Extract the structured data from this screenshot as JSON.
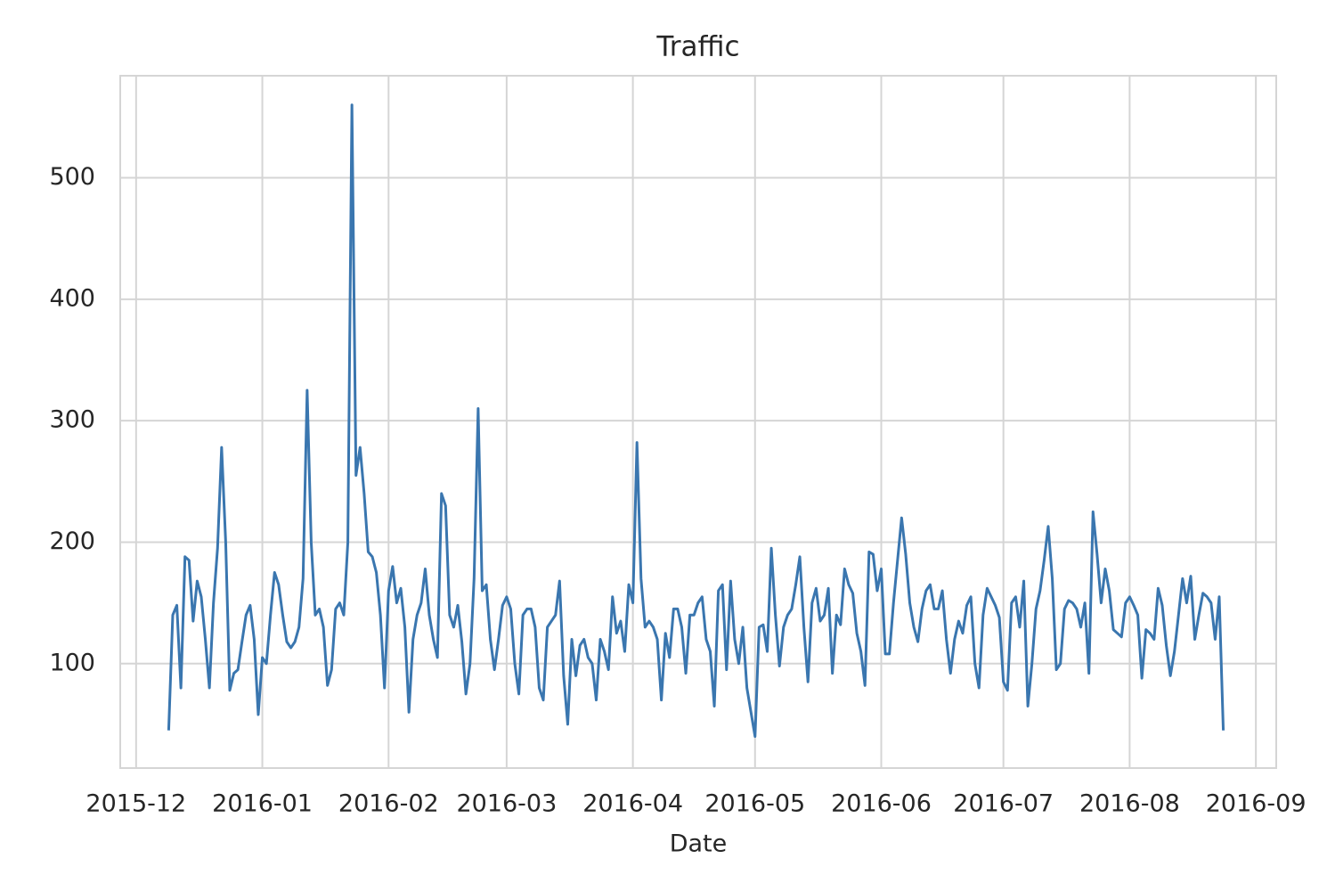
{
  "chart_data": {
    "type": "line",
    "title": "Traffic",
    "x_label": "Date",
    "x": [
      8,
      9,
      10,
      11,
      12,
      13,
      14,
      15,
      16,
      17,
      18,
      19,
      20,
      21,
      22,
      23,
      24,
      25,
      26,
      27,
      28,
      29,
      30,
      31,
      32,
      33,
      34,
      35,
      36,
      37,
      38,
      39,
      40,
      41,
      42,
      43,
      44,
      45,
      46,
      47,
      48,
      49,
      50,
      51,
      52,
      53,
      54,
      55,
      56,
      57,
      58,
      59,
      60,
      61,
      62,
      63,
      64,
      65,
      66,
      67,
      68,
      69,
      70,
      71,
      72,
      73,
      74,
      75,
      76,
      77,
      78,
      79,
      80,
      81,
      82,
      83,
      84,
      85,
      86,
      87,
      88,
      89,
      90,
      91,
      92,
      93,
      94,
      95,
      96,
      97,
      98,
      99,
      100,
      101,
      102,
      103,
      104,
      105,
      106,
      107,
      108,
      109,
      110,
      111,
      112,
      113,
      114,
      115,
      116,
      117,
      118,
      119,
      120,
      121,
      122,
      123,
      124,
      125,
      126,
      127,
      128,
      129,
      130,
      131,
      132,
      133,
      134,
      135,
      136,
      137,
      138,
      139,
      140,
      141,
      142,
      143,
      144,
      145,
      146,
      147,
      148,
      149,
      150,
      151,
      152,
      153,
      154,
      155,
      156,
      157,
      158,
      159,
      160,
      161,
      162,
      163,
      164,
      165,
      166,
      167,
      168,
      169,
      170,
      171,
      172,
      173,
      174,
      175,
      176,
      177,
      178,
      179,
      180,
      181,
      182,
      183,
      184,
      185,
      186,
      187,
      188,
      189,
      190,
      191,
      192,
      193,
      194,
      195,
      196,
      197,
      198,
      199,
      200,
      201,
      202,
      203,
      204,
      205,
      206,
      207,
      208,
      209,
      210,
      211,
      212,
      213,
      214,
      215,
      216,
      217,
      218,
      219,
      220,
      221,
      222,
      223,
      224,
      225,
      226,
      227,
      228,
      229,
      230,
      231,
      232,
      233,
      234,
      235,
      236,
      237,
      238,
      239,
      240,
      241,
      242,
      243,
      244,
      245,
      246,
      247,
      248,
      249,
      250,
      251,
      252,
      253,
      254,
      255,
      256,
      257,
      258,
      259,
      260,
      261,
      262,
      263,
      264,
      265,
      266,
      267
    ],
    "values": [
      45,
      140,
      148,
      80,
      188,
      185,
      135,
      168,
      155,
      120,
      80,
      150,
      195,
      278,
      200,
      78,
      92,
      95,
      118,
      140,
      148,
      120,
      58,
      105,
      100,
      140,
      175,
      165,
      140,
      118,
      113,
      118,
      130,
      170,
      325,
      200,
      140,
      145,
      130,
      82,
      95,
      145,
      150,
      140,
      200,
      560,
      255,
      278,
      240,
      192,
      188,
      175,
      140,
      80,
      160,
      180,
      150,
      162,
      130,
      60,
      120,
      140,
      150,
      178,
      140,
      120,
      105,
      240,
      230,
      140,
      130,
      148,
      118,
      75,
      100,
      170,
      310,
      160,
      165,
      120,
      95,
      120,
      148,
      155,
      145,
      100,
      75,
      140,
      145,
      145,
      130,
      80,
      70,
      130,
      135,
      140,
      168,
      90,
      50,
      120,
      90,
      115,
      120,
      105,
      100,
      70,
      120,
      110,
      95,
      155,
      125,
      135,
      110,
      165,
      150,
      282,
      170,
      130,
      135,
      130,
      120,
      70,
      125,
      105,
      145,
      145,
      130,
      92,
      140,
      140,
      150,
      155,
      120,
      110,
      65,
      160,
      165,
      95,
      168,
      120,
      100,
      130,
      80,
      60,
      40,
      130,
      132,
      110,
      195,
      140,
      98,
      130,
      140,
      145,
      165,
      188,
      130,
      85,
      150,
      162,
      135,
      140,
      162,
      92,
      140,
      132,
      178,
      165,
      158,
      125,
      110,
      82,
      192,
      190,
      160,
      178,
      108,
      108,
      150,
      185,
      220,
      190,
      150,
      130,
      118,
      145,
      160,
      165,
      145,
      145,
      160,
      120,
      92,
      120,
      135,
      125,
      148,
      155,
      100,
      80,
      140,
      162,
      155,
      148,
      138,
      85,
      78,
      150,
      155,
      130,
      168,
      65,
      100,
      145,
      160,
      185,
      213,
      170,
      95,
      100,
      145,
      152,
      150,
      145,
      130,
      150,
      92,
      225,
      190,
      150,
      178,
      160,
      128,
      125,
      122,
      150,
      155,
      148,
      140,
      88,
      128,
      125,
      120,
      162,
      148,
      115,
      90,
      110,
      140,
      170,
      150,
      172,
      120,
      140,
      158,
      155,
      150,
      120,
      155,
      45
    ],
    "color": "#3a76af",
    "xlim": [
      -3.9,
      280
    ],
    "xticks": [
      {
        "value": 0,
        "label": "2015-12"
      },
      {
        "value": 31,
        "label": "2016-01"
      },
      {
        "value": 62,
        "label": "2016-02"
      },
      {
        "value": 91,
        "label": "2016-03"
      },
      {
        "value": 122,
        "label": "2016-04"
      },
      {
        "value": 152,
        "label": "2016-05"
      },
      {
        "value": 183,
        "label": "2016-06"
      },
      {
        "value": 213,
        "label": "2016-07"
      },
      {
        "value": 244,
        "label": "2016-08"
      },
      {
        "value": 275,
        "label": "2016-09"
      }
    ],
    "ylim": [
      14,
      584
    ],
    "yticks": [
      100,
      200,
      300,
      400,
      500
    ],
    "grid": true
  }
}
